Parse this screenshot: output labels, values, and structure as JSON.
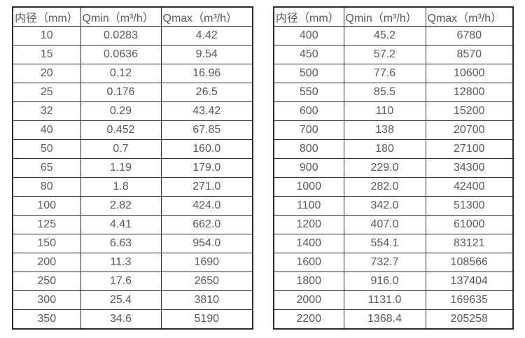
{
  "page": {
    "background": "#ffffff",
    "border_color": "#2b2b2b",
    "text_color": "#58595b"
  },
  "tables": [
    {
      "name": "small-diameter-flow-table",
      "headers": [
        "内径（mm）",
        "Qmin（m³/h）",
        "Qmax（m³/h）"
      ],
      "rows": [
        [
          "10",
          "0.0283",
          "4.42"
        ],
        [
          "15",
          "0.0636",
          "9.54"
        ],
        [
          "20",
          "0.12",
          "16.96"
        ],
        [
          "25",
          "0.176",
          "26.5"
        ],
        [
          "32",
          "0.29",
          "43.42"
        ],
        [
          "40",
          "0.452",
          "67.85"
        ],
        [
          "50",
          "0.7",
          "160.0"
        ],
        [
          "65",
          "1.19",
          "179.0"
        ],
        [
          "80",
          "1.8",
          "271.0"
        ],
        [
          "100",
          "2.82",
          "424.0"
        ],
        [
          "125",
          "4.41",
          "662.0"
        ],
        [
          "150",
          "6.63",
          "954.0"
        ],
        [
          "200",
          "11.3",
          "1690"
        ],
        [
          "250",
          "17.6",
          "2650"
        ],
        [
          "300",
          "25.4",
          "3810"
        ],
        [
          "350",
          "34.6",
          "5190"
        ]
      ]
    },
    {
      "name": "large-diameter-flow-table",
      "headers": [
        "内径（mm）",
        "Qmin（m³/h）",
        "Qmax（m³/h）"
      ],
      "rows": [
        [
          "400",
          "45.2",
          "6780"
        ],
        [
          "450",
          "57.2",
          "8570"
        ],
        [
          "500",
          "77.6",
          "10600"
        ],
        [
          "550",
          "85.5",
          "12800"
        ],
        [
          "600",
          "110",
          "15200"
        ],
        [
          "700",
          "138",
          "20700"
        ],
        [
          "800",
          "180",
          "27100"
        ],
        [
          "900",
          "229.0",
          "34300"
        ],
        [
          "1000",
          "282.0",
          "42400"
        ],
        [
          "1100",
          "342.0",
          "51300"
        ],
        [
          "1200",
          "407.0",
          "61000"
        ],
        [
          "1400",
          "554.1",
          "83121"
        ],
        [
          "1600",
          "732.7",
          "108566"
        ],
        [
          "1800",
          "916.0",
          "137404"
        ],
        [
          "2000",
          "1131.0",
          "169635"
        ],
        [
          "2200",
          "1368.4",
          "205258"
        ]
      ]
    }
  ]
}
